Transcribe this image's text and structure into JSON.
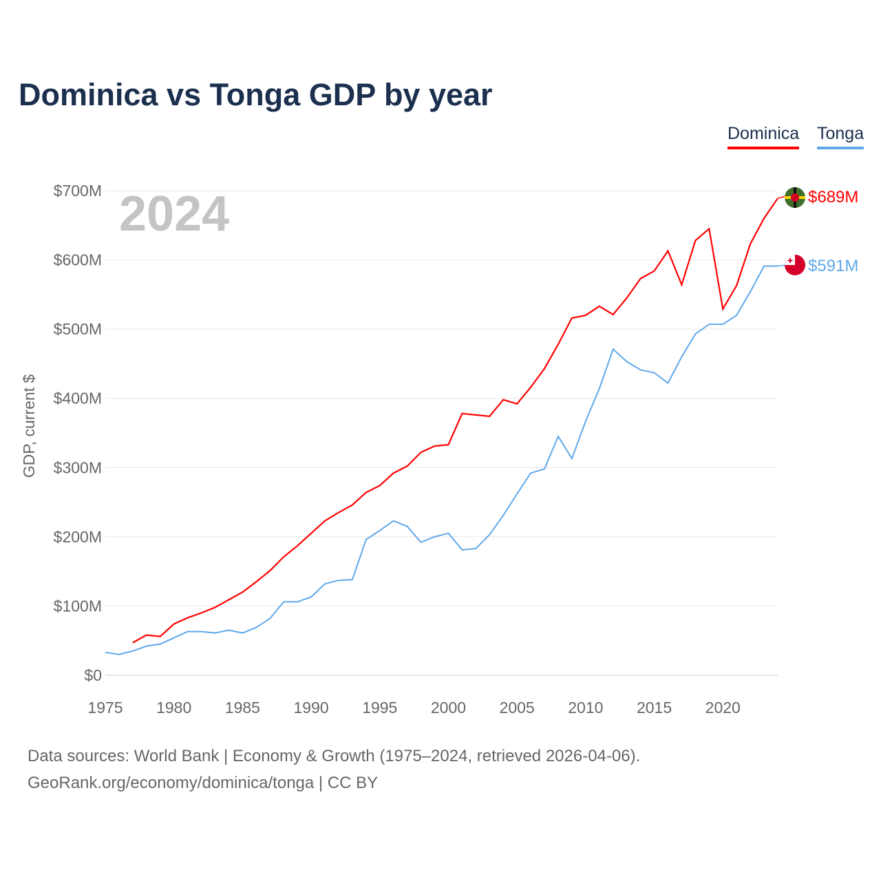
{
  "title": "Dominica vs Tonga GDP by year",
  "year_label": "2024",
  "source_line1": "Data sources: World Bank | Economy & Growth (1975–2024, retrieved 2026-04-06).",
  "source_line2": "GeoRank.org/economy/dominica/tonga | CC BY",
  "chart_data": {
    "type": "line",
    "title": "Dominica vs Tonga GDP by year",
    "xlabel": "",
    "ylabel": "GDP, current $",
    "xlim": [
      1975,
      2024
    ],
    "ylim": [
      0,
      700
    ],
    "y_unit": "million USD",
    "x_ticks": [
      "1975",
      "1980",
      "1985",
      "1990",
      "1995",
      "2000",
      "2005",
      "2010",
      "2015",
      "2020"
    ],
    "y_ticks": [
      "$0",
      "$100M",
      "$200M",
      "$300M",
      "$400M",
      "$500M",
      "$600M",
      "$700M"
    ],
    "grid": true,
    "legend_position": "top-right",
    "series": [
      {
        "name": "Dominica",
        "color": "#ff0000",
        "end_label": "$689M",
        "start_year": 1977,
        "values": [
          47,
          58,
          56,
          74,
          83,
          90,
          98,
          109,
          120,
          135,
          151,
          171,
          187,
          205,
          223,
          235,
          246,
          264,
          274,
          292,
          302,
          322,
          331,
          333,
          378,
          376,
          374,
          398,
          392,
          416,
          443,
          478,
          516,
          520,
          533,
          521,
          545,
          573,
          584,
          613,
          564,
          628,
          645,
          529,
          563,
          623,
          660,
          689
        ]
      },
      {
        "name": "Tonga",
        "color": "#5fa8ea",
        "end_label": "$591M",
        "start_year": 1975,
        "values": [
          33,
          30,
          35,
          42,
          45,
          54,
          63,
          63,
          61,
          65,
          61,
          69,
          82,
          106,
          106,
          113,
          132,
          137,
          138,
          196,
          209,
          223,
          215,
          192,
          200,
          205,
          181,
          183,
          203,
          231,
          262,
          292,
          298,
          345,
          313,
          367,
          414,
          471,
          453,
          441,
          437,
          422,
          460,
          493,
          507,
          507,
          520,
          554,
          591,
          591
        ]
      }
    ]
  }
}
